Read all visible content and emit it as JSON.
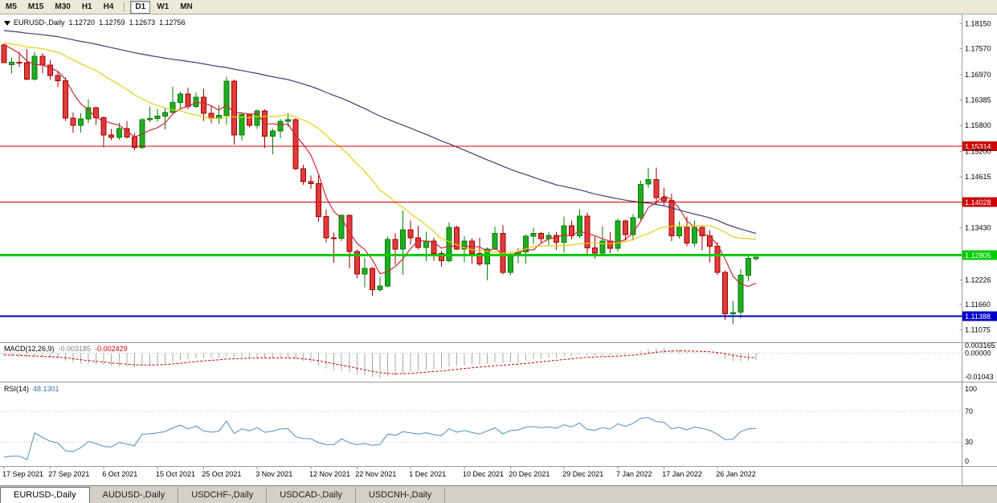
{
  "toolbar": {
    "timeframes": [
      {
        "label": "M5"
      },
      {
        "label": "M15"
      },
      {
        "label": "M30"
      },
      {
        "label": "H1"
      },
      {
        "label": "H4"
      },
      {
        "label": "D1",
        "active": true,
        "sep_before": true
      },
      {
        "label": "W1"
      },
      {
        "label": "MN"
      }
    ]
  },
  "chart": {
    "header": {
      "symbol": "EURUSD-,Daily",
      "open": "1.12720",
      "high": "1.12759",
      "low": "1.12673",
      "close": "1.12756"
    },
    "price_axis": {
      "grid_labels": [
        "1.18150",
        "1.17570",
        "1.16970",
        "1.16385",
        "1.15800",
        "1.15200",
        "1.14615",
        "1.13430",
        "1.12226",
        "1.11660",
        "1.11075"
      ]
    },
    "date_axis": [
      {
        "label": "17 Sep 2021",
        "index": 0
      },
      {
        "label": "27 Sep 2021",
        "index": 6
      },
      {
        "label": "6 Oct 2021",
        "index": 13
      },
      {
        "label": "15 Oct 2021",
        "index": 20
      },
      {
        "label": "25 Oct 2021",
        "index": 26
      },
      {
        "label": "3 Nov 2021",
        "index": 33
      },
      {
        "label": "12 Nov 2021",
        "index": 40
      },
      {
        "label": "22 Nov 2021",
        "index": 46
      },
      {
        "label": "1 Dec 2021",
        "index": 53
      },
      {
        "label": "10 Dec 2021",
        "index": 60
      },
      {
        "label": "20 Dec 2021",
        "index": 66
      },
      {
        "label": "29 Dec 2021",
        "index": 73
      },
      {
        "label": "7 Jan 2022",
        "index": 80
      },
      {
        "label": "17 Jan 2022",
        "index": 86
      },
      {
        "label": "26 Jan 2022",
        "index": 93
      }
    ]
  },
  "indicators": {
    "macd": {
      "label": "MACD(12,26,9)",
      "value": "-0.003185",
      "signal": "-0.002429",
      "axis_labels": [
        "0.003165",
        "0.00000",
        "-0.01043"
      ],
      "histogram_color": "#a8a8a8",
      "signal_color": "#cc0000"
    },
    "rsi": {
      "label": "RSI(14)",
      "value": "48.1301",
      "axis_labels": [
        "100",
        "70",
        "30",
        "0"
      ],
      "levels": [
        70,
        30
      ],
      "line_color": "#4f8fc0"
    }
  },
  "bottom_tabs": [
    {
      "label": "EURUSD-,Daily",
      "active": true
    },
    {
      "label": "AUDUSD-,Daily"
    },
    {
      "label": "USDCHF-,Daily"
    },
    {
      "label": "USDCAD-,Daily"
    },
    {
      "label": "USDCNH-,Daily"
    }
  ],
  "chart_data": {
    "type": "candlestick",
    "symbol": "EURUSD-",
    "timeframe": "Daily",
    "ylim": [
      1.109,
      1.1825
    ],
    "up_color": "#1fae1f",
    "down_color": "#e03c3c",
    "horizontal_lines": [
      {
        "price": 1.15314,
        "label": "1.15314",
        "color": "#cc0000",
        "width": 1
      },
      {
        "price": 1.14028,
        "label": "1.14028",
        "color": "#cc0000",
        "width": 1
      },
      {
        "price": 1.12805,
        "label": "1.12805",
        "color": "#00cc00",
        "width": 3
      },
      {
        "price": 1.11388,
        "label": "1.11388",
        "color": "#0000cc",
        "width": 2
      }
    ],
    "moving_averages": [
      {
        "period": 5,
        "type": "sma",
        "color": "#cc2936"
      },
      {
        "period": 20,
        "type": "sma",
        "color": "#e3cf14"
      },
      {
        "period": 65,
        "type": "sma",
        "color": "#3d3d78"
      }
    ],
    "candles": [
      [
        "2021-09-17",
        1.1766,
        1.177,
        1.1724,
        1.1725
      ],
      [
        "2021-09-20",
        1.172,
        1.1737,
        1.17,
        1.1726
      ],
      [
        "2021-09-21",
        1.1726,
        1.175,
        1.1715,
        1.1725
      ],
      [
        "2021-09-22",
        1.1725,
        1.1756,
        1.1684,
        1.1687
      ],
      [
        "2021-09-23",
        1.1687,
        1.175,
        1.1683,
        1.174
      ],
      [
        "2021-09-24",
        1.174,
        1.1747,
        1.1701,
        1.1719
      ],
      [
        "2021-09-27",
        1.1719,
        1.173,
        1.1685,
        1.1695
      ],
      [
        "2021-09-28",
        1.1695,
        1.1705,
        1.1668,
        1.1683
      ],
      [
        "2021-09-29",
        1.1683,
        1.169,
        1.159,
        1.1597
      ],
      [
        "2021-09-30",
        1.1597,
        1.161,
        1.1563,
        1.158
      ],
      [
        "2021-10-01",
        1.158,
        1.1608,
        1.1563,
        1.1595
      ],
      [
        "2021-10-04",
        1.1595,
        1.164,
        1.1586,
        1.1621
      ],
      [
        "2021-10-05",
        1.1621,
        1.1623,
        1.1581,
        1.1598
      ],
      [
        "2021-10-06",
        1.1598,
        1.16,
        1.1529,
        1.1558
      ],
      [
        "2021-10-07",
        1.1558,
        1.1572,
        1.1546,
        1.1552
      ],
      [
        "2021-10-08",
        1.1552,
        1.1586,
        1.1547,
        1.1573
      ],
      [
        "2021-10-11",
        1.1573,
        1.1589,
        1.1549,
        1.1553
      ],
      [
        "2021-10-12",
        1.1553,
        1.1562,
        1.1522,
        1.1529
      ],
      [
        "2021-10-13",
        1.1529,
        1.1597,
        1.1525,
        1.1593
      ],
      [
        "2021-10-14",
        1.1593,
        1.1624,
        1.1587,
        1.1596
      ],
      [
        "2021-10-15",
        1.1596,
        1.1618,
        1.1588,
        1.1601
      ],
      [
        "2021-10-18",
        1.1601,
        1.1621,
        1.1571,
        1.161
      ],
      [
        "2021-10-19",
        1.161,
        1.1669,
        1.1609,
        1.1633
      ],
      [
        "2021-10-20",
        1.1633,
        1.1658,
        1.1617,
        1.1652
      ],
      [
        "2021-10-21",
        1.1652,
        1.1667,
        1.1617,
        1.1624
      ],
      [
        "2021-10-22",
        1.1624,
        1.1656,
        1.162,
        1.1645
      ],
      [
        "2021-10-25",
        1.1645,
        1.1664,
        1.159,
        1.1608
      ],
      [
        "2021-10-26",
        1.1608,
        1.1626,
        1.1585,
        1.1596
      ],
      [
        "2021-10-27",
        1.1596,
        1.1626,
        1.1584,
        1.1603
      ],
      [
        "2021-10-28",
        1.1603,
        1.1692,
        1.1582,
        1.1682
      ],
      [
        "2021-10-29",
        1.1682,
        1.1686,
        1.1535,
        1.1558
      ],
      [
        "2021-11-01",
        1.1558,
        1.1609,
        1.1545,
        1.1605
      ],
      [
        "2021-11-02",
        1.1605,
        1.1608,
        1.1575,
        1.158
      ],
      [
        "2021-11-03",
        1.158,
        1.1616,
        1.1572,
        1.1613
      ],
      [
        "2021-11-04",
        1.1613,
        1.1617,
        1.1528,
        1.1555
      ],
      [
        "2021-11-05",
        1.1555,
        1.1573,
        1.1513,
        1.1567
      ],
      [
        "2021-11-08",
        1.1567,
        1.1595,
        1.155,
        1.1589
      ],
      [
        "2021-11-09",
        1.1589,
        1.1609,
        1.1576,
        1.1593
      ],
      [
        "2021-11-10",
        1.1593,
        1.1597,
        1.1477,
        1.148
      ],
      [
        "2021-11-11",
        1.148,
        1.1489,
        1.1443,
        1.145
      ],
      [
        "2021-11-12",
        1.145,
        1.1464,
        1.1433,
        1.1445
      ],
      [
        "2021-11-15",
        1.1445,
        1.1464,
        1.1357,
        1.1369
      ],
      [
        "2021-11-16",
        1.1369,
        1.1386,
        1.131,
        1.132
      ],
      [
        "2021-11-17",
        1.132,
        1.1332,
        1.1263,
        1.1319
      ],
      [
        "2021-11-18",
        1.1319,
        1.1374,
        1.1313,
        1.1372
      ],
      [
        "2021-11-19",
        1.1372,
        1.1374,
        1.125,
        1.1289
      ],
      [
        "2021-11-22",
        1.1289,
        1.1293,
        1.1226,
        1.1237
      ],
      [
        "2021-11-23",
        1.1237,
        1.1275,
        1.1206,
        1.125
      ],
      [
        "2021-11-24",
        1.125,
        1.1252,
        1.1186,
        1.12
      ],
      [
        "2021-11-25",
        1.12,
        1.123,
        1.1196,
        1.1209
      ],
      [
        "2021-11-26",
        1.1209,
        1.1323,
        1.1206,
        1.1316
      ],
      [
        "2021-11-29",
        1.1316,
        1.133,
        1.1258,
        1.1294
      ],
      [
        "2021-11-30",
        1.1294,
        1.1383,
        1.1235,
        1.1339
      ],
      [
        "2021-12-01",
        1.1339,
        1.136,
        1.1304,
        1.132
      ],
      [
        "2021-12-02",
        1.132,
        1.1348,
        1.1293,
        1.1298
      ],
      [
        "2021-12-03",
        1.1298,
        1.1334,
        1.1266,
        1.1313
      ],
      [
        "2021-12-06",
        1.1313,
        1.132,
        1.1267,
        1.1284
      ],
      [
        "2021-12-07",
        1.1284,
        1.129,
        1.1253,
        1.1267
      ],
      [
        "2021-12-08",
        1.1267,
        1.1355,
        1.1264,
        1.1344
      ],
      [
        "2021-12-09",
        1.1344,
        1.1348,
        1.1292,
        1.1294
      ],
      [
        "2021-12-10",
        1.1294,
        1.1324,
        1.1264,
        1.1313
      ],
      [
        "2021-12-13",
        1.1313,
        1.1319,
        1.126,
        1.1284
      ],
      [
        "2021-12-14",
        1.1284,
        1.132,
        1.1255,
        1.126
      ],
      [
        "2021-12-15",
        1.126,
        1.1298,
        1.1222,
        1.1294
      ],
      [
        "2021-12-16",
        1.1294,
        1.1346,
        1.1292,
        1.133
      ],
      [
        "2021-12-17",
        1.133,
        1.135,
        1.1236,
        1.124
      ],
      [
        "2021-12-20",
        1.124,
        1.1288,
        1.1234,
        1.128
      ],
      [
        "2021-12-21",
        1.128,
        1.1296,
        1.1262,
        1.1288
      ],
      [
        "2021-12-22",
        1.1288,
        1.1328,
        1.1261,
        1.1324
      ],
      [
        "2021-12-23",
        1.1324,
        1.1343,
        1.1306,
        1.133
      ],
      [
        "2021-12-24",
        1.133,
        1.1334,
        1.1308,
        1.1318
      ],
      [
        "2021-12-27",
        1.1318,
        1.1333,
        1.1304,
        1.1326
      ],
      [
        "2021-12-28",
        1.1326,
        1.1334,
        1.1292,
        1.131
      ],
      [
        "2021-12-29",
        1.131,
        1.1369,
        1.1286,
        1.1348
      ],
      [
        "2021-12-30",
        1.1348,
        1.136,
        1.1316,
        1.1325
      ],
      [
        "2021-12-31",
        1.1325,
        1.1386,
        1.1319,
        1.137
      ],
      [
        "2022-01-03",
        1.137,
        1.1379,
        1.1279,
        1.1297
      ],
      [
        "2022-01-04",
        1.1297,
        1.1323,
        1.1272,
        1.1285
      ],
      [
        "2022-01-05",
        1.1285,
        1.1347,
        1.1281,
        1.1313
      ],
      [
        "2022-01-06",
        1.1313,
        1.1333,
        1.1285,
        1.1296
      ],
      [
        "2022-01-07",
        1.1296,
        1.1365,
        1.1288,
        1.1359
      ],
      [
        "2022-01-10",
        1.1359,
        1.1362,
        1.1314,
        1.1328
      ],
      [
        "2022-01-11",
        1.1328,
        1.1375,
        1.1314,
        1.1367
      ],
      [
        "2022-01-12",
        1.1367,
        1.1453,
        1.1361,
        1.1444
      ],
      [
        "2022-01-13",
        1.1444,
        1.1482,
        1.1435,
        1.1455
      ],
      [
        "2022-01-14",
        1.1455,
        1.1483,
        1.1398,
        1.1413
      ],
      [
        "2022-01-17",
        1.1413,
        1.1435,
        1.1394,
        1.1406
      ],
      [
        "2022-01-18",
        1.1406,
        1.1422,
        1.1313,
        1.1325
      ],
      [
        "2022-01-19",
        1.1325,
        1.1358,
        1.1318,
        1.1344
      ],
      [
        "2022-01-20",
        1.1344,
        1.1369,
        1.1301,
        1.1308
      ],
      [
        "2022-01-21",
        1.1308,
        1.136,
        1.13,
        1.1344
      ],
      [
        "2022-01-24",
        1.1344,
        1.1349,
        1.1291,
        1.1325
      ],
      [
        "2022-01-25",
        1.1325,
        1.1338,
        1.1264,
        1.1301
      ],
      [
        "2022-01-26",
        1.1301,
        1.131,
        1.1235,
        1.124
      ],
      [
        "2022-01-27",
        1.124,
        1.1245,
        1.1131,
        1.1145
      ],
      [
        "2022-01-28",
        1.1145,
        1.1174,
        1.1121,
        1.1148
      ],
      [
        "2022-01-31",
        1.1148,
        1.1248,
        1.1135,
        1.1234
      ],
      [
        "2022-02-01",
        1.1234,
        1.1279,
        1.1221,
        1.1273
      ],
      [
        "2022-02-02",
        1.1272,
        1.12759,
        1.12673,
        1.12756
      ]
    ]
  }
}
